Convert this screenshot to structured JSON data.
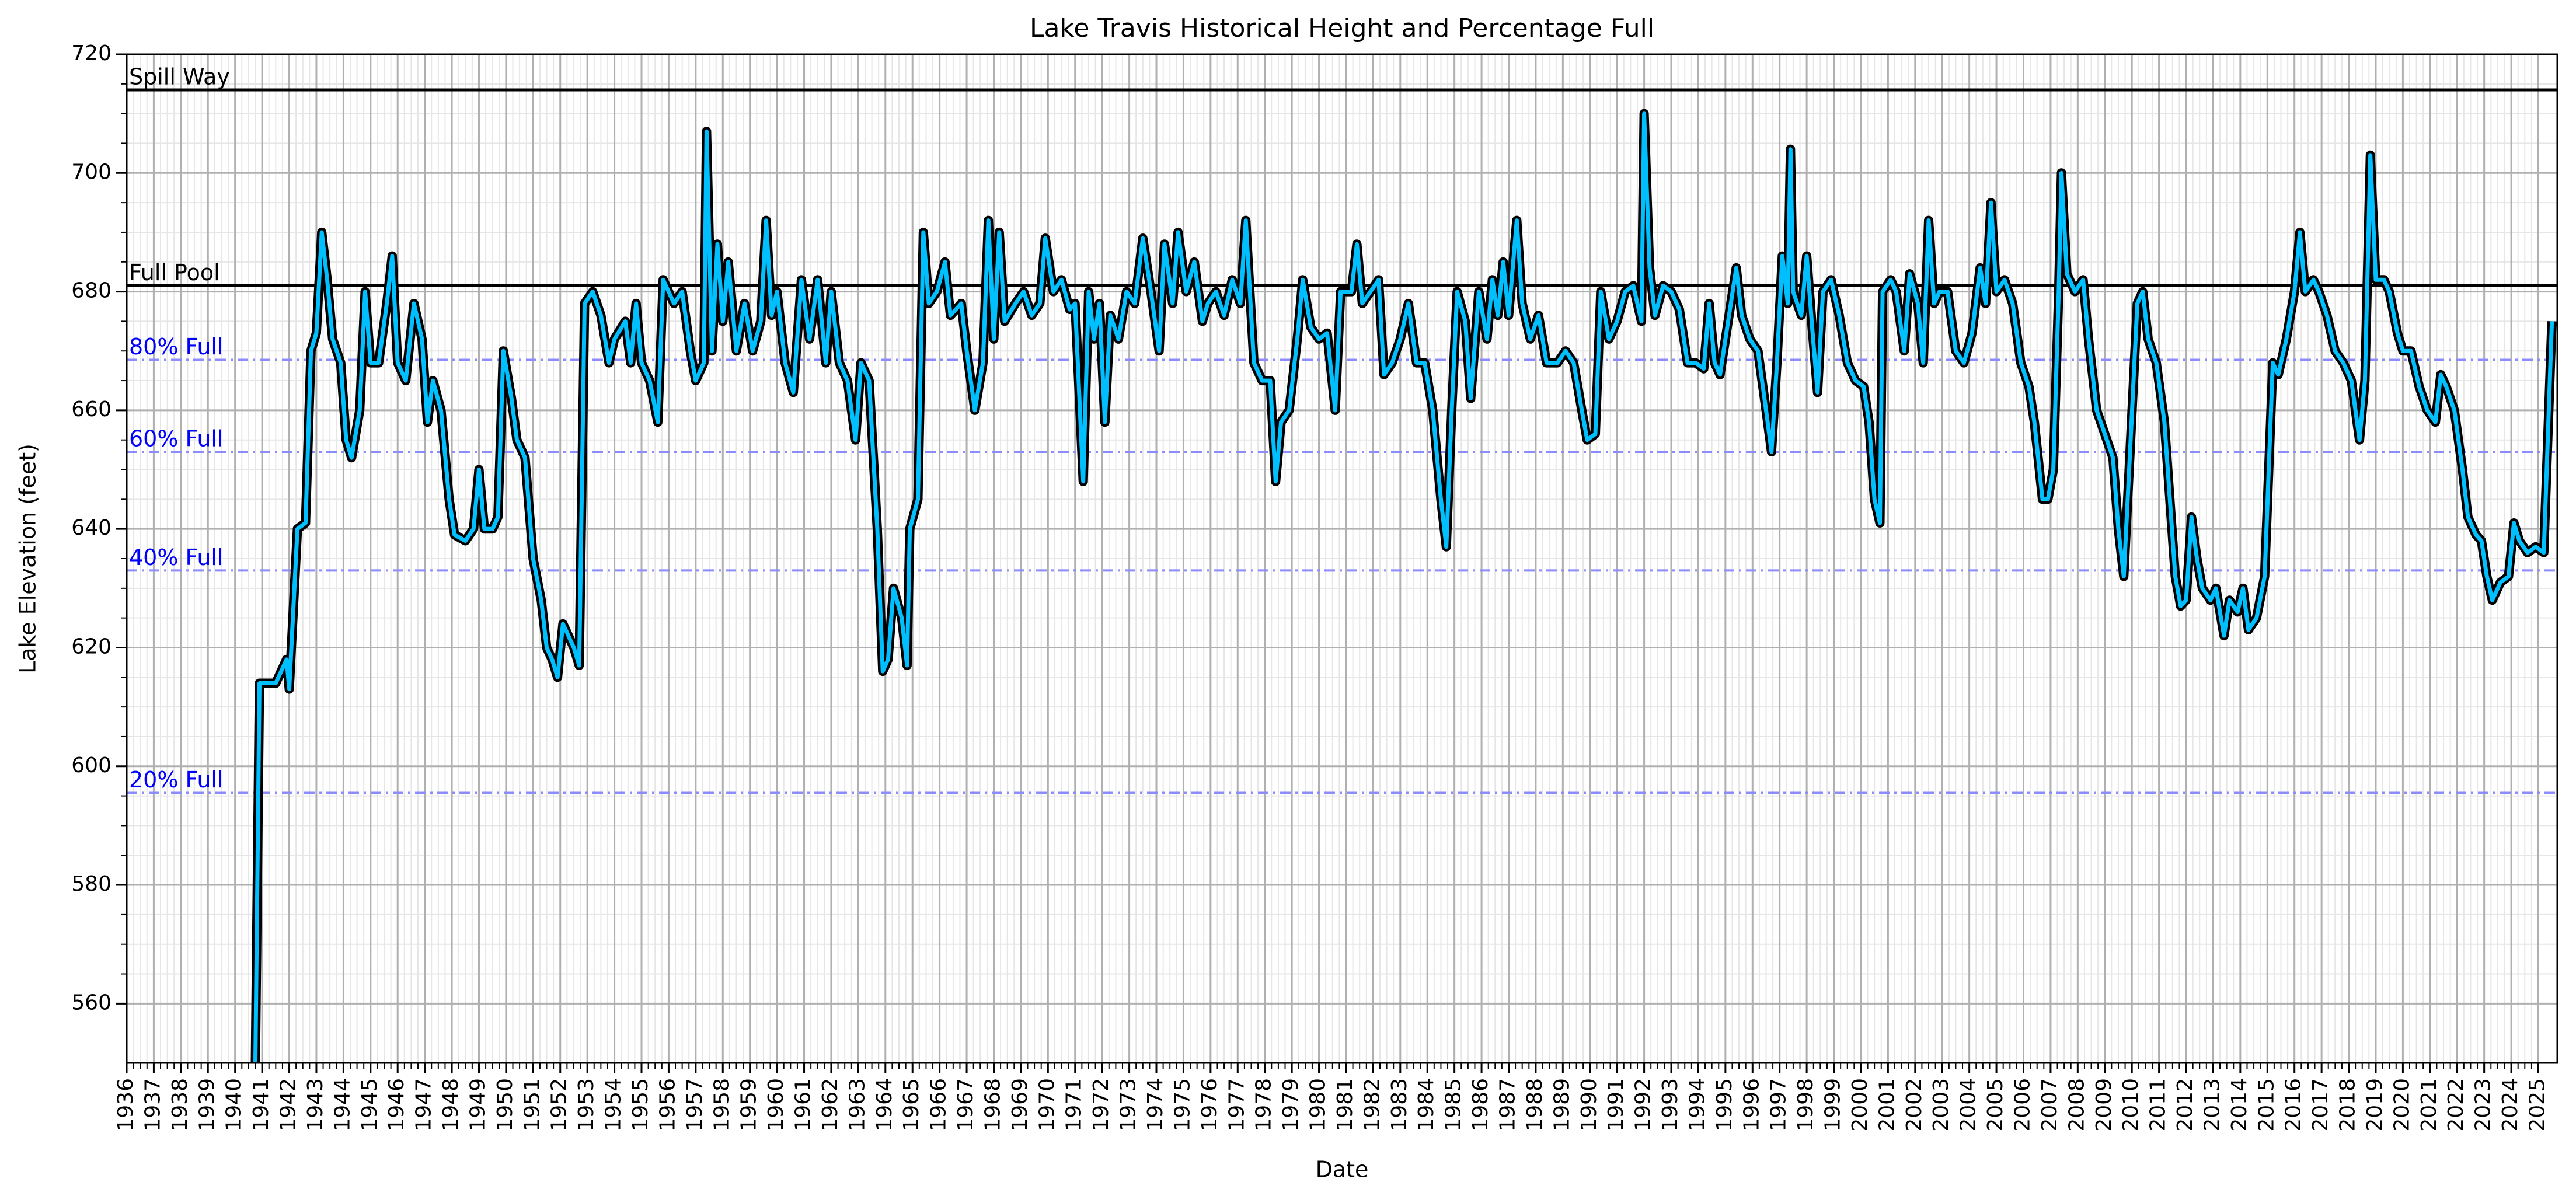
{
  "chart_data": {
    "type": "line",
    "title": "Lake Travis Historical Height and Percentage Full",
    "xlabel": "Date",
    "ylabel": "Lake Elevation (feet)",
    "xlim": [
      1936,
      2025.7
    ],
    "ylim": [
      550,
      720
    ],
    "yticks": [
      560,
      580,
      600,
      620,
      640,
      660,
      680,
      700,
      720
    ],
    "xticks": [
      1936,
      1937,
      1938,
      1939,
      1940,
      1941,
      1942,
      1943,
      1944,
      1945,
      1946,
      1947,
      1948,
      1949,
      1950,
      1951,
      1952,
      1953,
      1954,
      1955,
      1956,
      1957,
      1958,
      1959,
      1960,
      1961,
      1962,
      1963,
      1964,
      1965,
      1966,
      1967,
      1968,
      1969,
      1970,
      1971,
      1972,
      1973,
      1974,
      1975,
      1976,
      1977,
      1978,
      1979,
      1980,
      1981,
      1982,
      1983,
      1984,
      1985,
      1986,
      1987,
      1988,
      1989,
      1990,
      1991,
      1992,
      1993,
      1994,
      1995,
      1996,
      1997,
      1998,
      1999,
      2000,
      2001,
      2002,
      2003,
      2004,
      2005,
      2006,
      2007,
      2008,
      2009,
      2010,
      2011,
      2012,
      2013,
      2014,
      2015,
      2016,
      2017,
      2018,
      2019,
      2020,
      2021,
      2022,
      2023,
      2024,
      2025
    ],
    "grid": true,
    "minor_grid": true,
    "color": "#00bfff",
    "edgecolor": "#000000",
    "reference_lines": [
      {
        "label": "Spill Way",
        "value": 714,
        "color": "#000000",
        "label_color": "#000000",
        "style": "solid"
      },
      {
        "label": "Full Pool",
        "value": 681,
        "color": "#000000",
        "label_color": "#000000",
        "style": "solid"
      },
      {
        "label": "80% Full",
        "value": 668.5,
        "color": "#8c8cff",
        "label_color": "#0000ff",
        "style": "dashed"
      },
      {
        "label": "60% Full",
        "value": 653,
        "color": "#8c8cff",
        "label_color": "#0000ff",
        "style": "dashed"
      },
      {
        "label": "40% Full",
        "value": 633,
        "color": "#8c8cff",
        "label_color": "#0000ff",
        "style": "dashed"
      },
      {
        "label": "20% Full",
        "value": 595.5,
        "color": "#8c8cff",
        "label_color": "#0000ff",
        "style": "dashed"
      }
    ],
    "x": [
      1940.75,
      1940.9,
      1941.5,
      1941.9,
      1942.0,
      1942.3,
      1942.6,
      1942.8,
      1943.0,
      1943.2,
      1943.4,
      1943.6,
      1943.9,
      1944.1,
      1944.3,
      1944.6,
      1944.8,
      1945.0,
      1945.3,
      1945.6,
      1945.8,
      1946.0,
      1946.3,
      1946.6,
      1946.9,
      1947.1,
      1947.3,
      1947.6,
      1947.9,
      1948.1,
      1948.5,
      1948.8,
      1949.0,
      1949.2,
      1949.5,
      1949.7,
      1949.9,
      1950.2,
      1950.4,
      1950.7,
      1951.0,
      1951.3,
      1951.5,
      1951.7,
      1951.9,
      1952.1,
      1952.5,
      1952.7,
      1952.9,
      1953.2,
      1953.5,
      1953.8,
      1954.0,
      1954.4,
      1954.6,
      1954.8,
      1955.0,
      1955.3,
      1955.6,
      1955.8,
      1956.2,
      1956.5,
      1956.8,
      1957.0,
      1957.3,
      1957.4,
      1957.6,
      1957.8,
      1958.0,
      1958.2,
      1958.5,
      1958.8,
      1959.1,
      1959.4,
      1959.6,
      1959.8,
      1960.0,
      1960.3,
      1960.6,
      1960.9,
      1961.2,
      1961.5,
      1961.8,
      1962.0,
      1962.3,
      1962.6,
      1962.9,
      1963.1,
      1963.4,
      1963.7,
      1963.9,
      1964.1,
      1964.3,
      1964.6,
      1964.8,
      1964.9,
      1965.2,
      1965.4,
      1965.6,
      1965.9,
      1966.2,
      1966.4,
      1966.8,
      1967.0,
      1967.3,
      1967.6,
      1967.8,
      1968.0,
      1968.2,
      1968.4,
      1968.8,
      1969.1,
      1969.4,
      1969.7,
      1969.9,
      1970.2,
      1970.5,
      1970.8,
      1971.0,
      1971.3,
      1971.5,
      1971.7,
      1971.9,
      1972.1,
      1972.3,
      1972.6,
      1972.9,
      1973.2,
      1973.5,
      1973.8,
      1974.1,
      1974.3,
      1974.6,
      1974.8,
      1975.1,
      1975.4,
      1975.7,
      1975.9,
      1976.2,
      1976.5,
      1976.8,
      1977.1,
      1977.3,
      1977.6,
      1977.9,
      1978.2,
      1978.4,
      1978.6,
      1978.9,
      1979.2,
      1979.4,
      1979.7,
      1980.0,
      1980.3,
      1980.6,
      1980.8,
      1981.2,
      1981.4,
      1981.6,
      1981.9,
      1982.2,
      1982.4,
      1982.7,
      1983.0,
      1983.3,
      1983.6,
      1983.9,
      1984.2,
      1984.5,
      1984.7,
      1984.9,
      1985.1,
      1985.4,
      1985.6,
      1985.9,
      1986.2,
      1986.4,
      1986.6,
      1986.8,
      1987.0,
      1987.3,
      1987.5,
      1987.8,
      1988.1,
      1988.4,
      1988.8,
      1989.1,
      1989.4,
      1989.7,
      1989.9,
      1990.2,
      1990.4,
      1990.7,
      1991.0,
      1991.3,
      1991.6,
      1991.9,
      1992.0,
      1992.2,
      1992.4,
      1992.7,
      1993.0,
      1993.3,
      1993.6,
      1993.9,
      1994.2,
      1994.4,
      1994.6,
      1994.8,
      1995.1,
      1995.4,
      1995.6,
      1995.9,
      1996.2,
      1996.5,
      1996.7,
      1996.9,
      1997.1,
      1997.3,
      1997.4,
      1997.5,
      1997.8,
      1998.0,
      1998.2,
      1998.4,
      1998.6,
      1998.9,
      1999.2,
      1999.5,
      1999.8,
      2000.1,
      2000.3,
      2000.5,
      2000.7,
      2000.8,
      2001.1,
      2001.3,
      2001.6,
      2001.8,
      2002.1,
      2002.3,
      2002.5,
      2002.7,
      2002.9,
      2003.2,
      2003.5,
      2003.8,
      2004.1,
      2004.4,
      2004.6,
      2004.8,
      2005.0,
      2005.3,
      2005.6,
      2005.9,
      2006.2,
      2006.4,
      2006.7,
      2006.9,
      2007.1,
      2007.3,
      2007.4,
      2007.6,
      2007.9,
      2008.2,
      2008.4,
      2008.7,
      2009.0,
      2009.3,
      2009.5,
      2009.7,
      2009.9,
      2010.2,
      2010.4,
      2010.6,
      2010.9,
      2011.2,
      2011.4,
      2011.6,
      2011.8,
      2012.0,
      2012.2,
      2012.4,
      2012.6,
      2012.9,
      2013.1,
      2013.4,
      2013.6,
      2013.9,
      2014.1,
      2014.3,
      2014.6,
      2014.9,
      2015.2,
      2015.4,
      2015.7,
      2016.0,
      2016.2,
      2016.4,
      2016.7,
      2016.9,
      2017.2,
      2017.5,
      2017.8,
      2018.1,
      2018.4,
      2018.6,
      2018.8,
      2019.0,
      2019.3,
      2019.5,
      2019.8,
      2020.0,
      2020.3,
      2020.6,
      2020.9,
      2021.2,
      2021.4,
      2021.6,
      2021.9,
      2022.2,
      2022.4,
      2022.7,
      2022.9,
      2023.1,
      2023.3,
      2023.6,
      2023.9,
      2024.1,
      2024.3,
      2024.6,
      2024.9,
      2025.2,
      2025.5
    ],
    "values": [
      550,
      614,
      614,
      618,
      613,
      640,
      641,
      670,
      673,
      690,
      682,
      672,
      668,
      655,
      652,
      660,
      680,
      668,
      668,
      678,
      686,
      668,
      665,
      678,
      672,
      658,
      665,
      660,
      645,
      639,
      638,
      640,
      650,
      640,
      640,
      642,
      670,
      662,
      655,
      652,
      635,
      628,
      620,
      618,
      615,
      624,
      620,
      617,
      678,
      680,
      676,
      668,
      672,
      675,
      668,
      678,
      668,
      665,
      658,
      682,
      678,
      680,
      670,
      665,
      668,
      707,
      670,
      688,
      675,
      685,
      670,
      678,
      670,
      675,
      692,
      676,
      680,
      668,
      663,
      682,
      672,
      682,
      668,
      680,
      668,
      665,
      655,
      668,
      665,
      640,
      616,
      618,
      630,
      625,
      617,
      640,
      645,
      690,
      678,
      680,
      685,
      676,
      678,
      670,
      660,
      668,
      692,
      672,
      690,
      675,
      678,
      680,
      676,
      678,
      689,
      680,
      682,
      677,
      678,
      648,
      680,
      672,
      678,
      658,
      676,
      672,
      680,
      678,
      689,
      680,
      670,
      688,
      678,
      690,
      680,
      685,
      675,
      678,
      680,
      676,
      682,
      678,
      692,
      668,
      665,
      665,
      648,
      658,
      660,
      672,
      682,
      674,
      672,
      673,
      660,
      680,
      680,
      688,
      678,
      680,
      682,
      666,
      668,
      672,
      678,
      668,
      668,
      660,
      645,
      637,
      660,
      680,
      675,
      662,
      680,
      672,
      682,
      676,
      685,
      676,
      692,
      678,
      672,
      676,
      668,
      668,
      670,
      668,
      660,
      655,
      656,
      680,
      672,
      675,
      680,
      681,
      675,
      710,
      684,
      676,
      681,
      680,
      677,
      668,
      668,
      667,
      678,
      668,
      666,
      675,
      684,
      676,
      672,
      670,
      660,
      653,
      668,
      686,
      678,
      704,
      680,
      676,
      686,
      674,
      663,
      680,
      682,
      676,
      668,
      665,
      664,
      658,
      645,
      641,
      680,
      682,
      680,
      670,
      683,
      678,
      668,
      692,
      678,
      680,
      680,
      670,
      668,
      673,
      684,
      678,
      695,
      680,
      682,
      678,
      668,
      664,
      658,
      645,
      645,
      650,
      680,
      700,
      683,
      680,
      682,
      672,
      660,
      656,
      652,
      640,
      632,
      650,
      678,
      680,
      672,
      668,
      658,
      645,
      632,
      627,
      628,
      642,
      635,
      630,
      628,
      630,
      622,
      628,
      626,
      630,
      623,
      625,
      632,
      668,
      666,
      672,
      680,
      690,
      680,
      682,
      680,
      676,
      670,
      668,
      665,
      655,
      665,
      703,
      682,
      682,
      680,
      673,
      670,
      670,
      664,
      660,
      658,
      666,
      664,
      660,
      650,
      642,
      639,
      638,
      632,
      628,
      631,
      632,
      641,
      638,
      636,
      637,
      636,
      675
    ]
  }
}
